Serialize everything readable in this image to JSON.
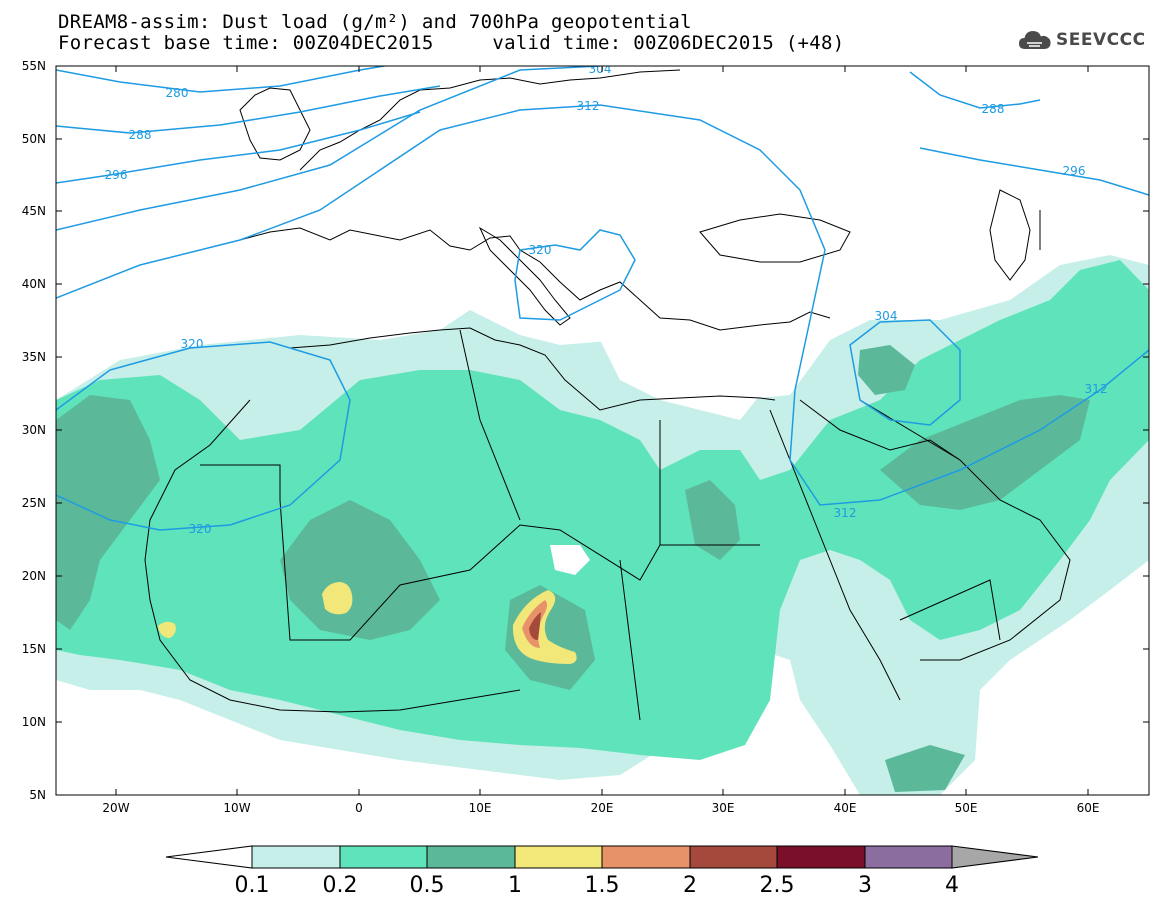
{
  "title": {
    "line1": "DREAM8-assim: Dust load (g/m²) and 700hPa geopotential",
    "line2": "Forecast base time: 00Z04DEC2015     valid time: 00Z06DEC2015 (+48)"
  },
  "logo": {
    "text": "SEEVCCC",
    "icon": "cloud-icon"
  },
  "axes": {
    "lat_ticks": [
      "55N",
      "50N",
      "45N",
      "40N",
      "35N",
      "30N",
      "25N",
      "20N",
      "15N",
      "10N",
      "5N"
    ],
    "lon_ticks": [
      "20W",
      "10W",
      "0",
      "10E",
      "20E",
      "30E",
      "40E",
      "50E",
      "60E"
    ]
  },
  "contours": {
    "labels": [
      "280",
      "288",
      "296",
      "304",
      "312",
      "320",
      "320",
      "320",
      "304",
      "312",
      "312",
      "288",
      "296"
    ]
  },
  "colorbar": {
    "colors": [
      "#c6efe9",
      "#5fe3bb",
      "#5bb99a",
      "#f2e879",
      "#e8926a",
      "#a5493d",
      "#7a0f2a",
      "#8c6da0",
      "#a7a7a7"
    ],
    "tick_labels": [
      "0.1",
      "0.2",
      "0.5",
      "1",
      "1.5",
      "2",
      "2.5",
      "3",
      "4"
    ]
  },
  "dust_colors": {
    "light": "#c6efe9",
    "medium": "#5fe3bb",
    "dark": "#5bb99a",
    "yellow": "#f2e879",
    "orange": "#e8926a",
    "red": "#a5493d"
  },
  "contour_color": "#1e9be3"
}
